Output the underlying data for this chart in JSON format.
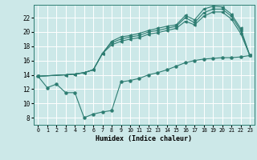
{
  "bg_color": "#cce8e8",
  "grid_color": "#ffffff",
  "line_color": "#2e7d72",
  "xlabel": "Humidex (Indice chaleur)",
  "xlim": [
    -0.5,
    23.5
  ],
  "ylim": [
    7.0,
    23.8
  ],
  "xticks": [
    0,
    1,
    2,
    3,
    4,
    5,
    6,
    7,
    8,
    9,
    10,
    11,
    12,
    13,
    14,
    15,
    16,
    17,
    18,
    19,
    20,
    21,
    22,
    23
  ],
  "yticks": [
    8,
    10,
    12,
    14,
    16,
    18,
    20,
    22
  ],
  "line1_x": [
    0,
    1,
    2,
    3,
    4,
    5,
    6,
    7,
    8,
    9,
    10,
    11,
    12,
    13,
    14,
    15,
    16,
    17,
    18,
    19,
    20,
    21,
    22,
    23
  ],
  "line1_y": [
    13.8,
    12.2,
    12.7,
    11.5,
    11.5,
    8.0,
    8.5,
    8.8,
    9.0,
    13.0,
    13.2,
    13.5,
    14.0,
    14.3,
    14.7,
    15.2,
    15.7,
    16.0,
    16.2,
    16.3,
    16.4,
    16.4,
    16.5,
    16.7
  ],
  "line2_x": [
    0,
    3,
    4,
    5,
    6,
    7,
    8,
    9,
    10,
    11,
    12,
    13,
    14,
    15,
    16,
    17,
    18,
    19,
    20,
    21,
    22,
    23
  ],
  "line2_y": [
    13.8,
    14.0,
    14.1,
    14.3,
    14.7,
    17.0,
    18.7,
    19.3,
    19.5,
    19.8,
    20.2,
    20.5,
    20.8,
    21.0,
    22.3,
    21.7,
    23.2,
    23.6,
    23.5,
    22.5,
    20.5,
    16.7
  ],
  "line3_x": [
    0,
    3,
    4,
    5,
    6,
    7,
    8,
    9,
    10,
    11,
    12,
    13,
    14,
    15,
    16,
    17,
    18,
    19,
    20,
    21,
    22,
    23
  ],
  "line3_y": [
    13.8,
    14.0,
    14.1,
    14.3,
    14.7,
    17.0,
    18.5,
    19.0,
    19.3,
    19.5,
    20.0,
    20.2,
    20.5,
    20.8,
    22.0,
    21.3,
    22.7,
    23.2,
    23.2,
    22.2,
    20.2,
    16.7
  ],
  "line4_x": [
    0,
    3,
    4,
    5,
    6,
    7,
    8,
    9,
    10,
    11,
    12,
    13,
    14,
    15,
    16,
    17,
    18,
    19,
    20,
    21,
    22,
    23
  ],
  "line4_y": [
    13.8,
    14.0,
    14.1,
    14.3,
    14.7,
    17.0,
    18.2,
    18.7,
    19.0,
    19.2,
    19.7,
    19.9,
    20.2,
    20.5,
    21.5,
    21.0,
    22.2,
    22.8,
    22.8,
    21.8,
    19.8,
    16.7
  ]
}
